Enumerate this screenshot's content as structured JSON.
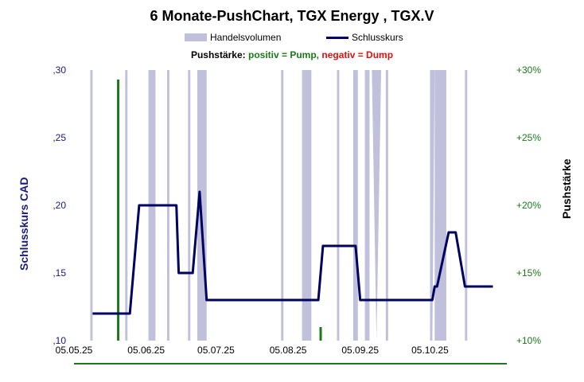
{
  "chart_data": {
    "type": "line",
    "title": "6 Monate-PushChart,  TGX Energy , TGX.V",
    "legend": {
      "placement": "top-center",
      "volume_label": "Handelsvolumen",
      "close_label": "Schlusskurs"
    },
    "pushline": {
      "prefix": "Pushstärke:",
      "positive": "positiv = Pump,",
      "negative": "negativ = Dump"
    },
    "ylabel_left": "Schlusskurs CAD",
    "ylabel_right": "Pushstärke",
    "ylim_left": [
      0.1,
      0.3
    ],
    "ylim_right": [
      10,
      30
    ],
    "yticks_left": [
      ",10",
      ",15",
      ",20",
      ",25",
      ",30"
    ],
    "yticks_right": [
      "+10%",
      "+15%",
      "+20%",
      "+25%",
      "+30%"
    ],
    "xlim": [
      "2025-05-05",
      "2025-11-07"
    ],
    "xticks": [
      {
        "date": "2025-05-05",
        "label": "05.05.25"
      },
      {
        "date": "2025-06-05",
        "label": "05.06.25"
      },
      {
        "date": "2025-07-05",
        "label": "05.07.25"
      },
      {
        "date": "2025-08-05",
        "label": "05.08.25"
      },
      {
        "date": "2025-09-05",
        "label": "05.09.25"
      },
      {
        "date": "2025-10-05",
        "label": "05.10.25"
      }
    ],
    "grid": false,
    "colors": {
      "title": "#000000",
      "close": "#000060",
      "volume": "#c0c0dc",
      "left_axis": "#1a1a80",
      "right_axis": "#1a7a1a",
      "positive": "#1a7a1a",
      "negative": "#e01010",
      "baseline": "#1a7a1a"
    },
    "series": [
      {
        "name": "Schlusskurs",
        "points": [
          [
            "2025-05-13",
            0.12
          ],
          [
            "2025-05-29",
            0.12
          ],
          [
            "2025-06-02",
            0.2
          ],
          [
            "2025-06-18",
            0.2
          ],
          [
            "2025-06-19",
            0.15
          ],
          [
            "2025-06-25",
            0.15
          ],
          [
            "2025-06-28",
            0.21
          ],
          [
            "2025-07-01",
            0.13
          ],
          [
            "2025-08-18",
            0.13
          ],
          [
            "2025-08-20",
            0.17
          ],
          [
            "2025-09-03",
            0.17
          ],
          [
            "2025-09-05",
            0.13
          ],
          [
            "2025-10-06",
            0.13
          ],
          [
            "2025-10-07",
            0.14
          ],
          [
            "2025-10-08",
            0.14
          ],
          [
            "2025-10-13",
            0.18
          ],
          [
            "2025-10-16",
            0.18
          ],
          [
            "2025-10-20",
            0.14
          ],
          [
            "2025-11-01",
            0.14
          ]
        ]
      },
      {
        "name": "Handelsvolumen",
        "bands": [
          [
            "2025-05-12",
            "2025-05-13"
          ],
          [
            "2025-05-27",
            "2025-05-28"
          ],
          [
            "2025-06-06",
            "2025-06-09"
          ],
          [
            "2025-06-14",
            "2025-06-15"
          ],
          [
            "2025-06-23",
            "2025-06-24"
          ],
          [
            "2025-06-27",
            "2025-07-01"
          ],
          [
            "2025-08-02",
            "2025-08-03"
          ],
          [
            "2025-08-11",
            "2025-08-15"
          ],
          [
            "2025-08-26",
            "2025-08-27"
          ],
          [
            "2025-09-02",
            "2025-09-04"
          ],
          [
            "2025-09-07",
            "2025-09-09"
          ],
          [
            "2025-09-16",
            "2025-09-17"
          ],
          [
            "2025-10-05",
            "2025-10-06"
          ],
          [
            "2025-10-07",
            "2025-10-12"
          ],
          [
            "2025-10-20",
            "2025-10-21"
          ]
        ],
        "peaks": [
          [
            "2025-09-10",
            "2025-09-14"
          ],
          [
            "2025-10-05",
            "2025-10-07"
          ]
        ]
      },
      {
        "name": "Pushstärke",
        "bars": [
          [
            "2025-05-24",
            29.3
          ],
          [
            "2025-08-19",
            11.0
          ]
        ]
      }
    ]
  }
}
